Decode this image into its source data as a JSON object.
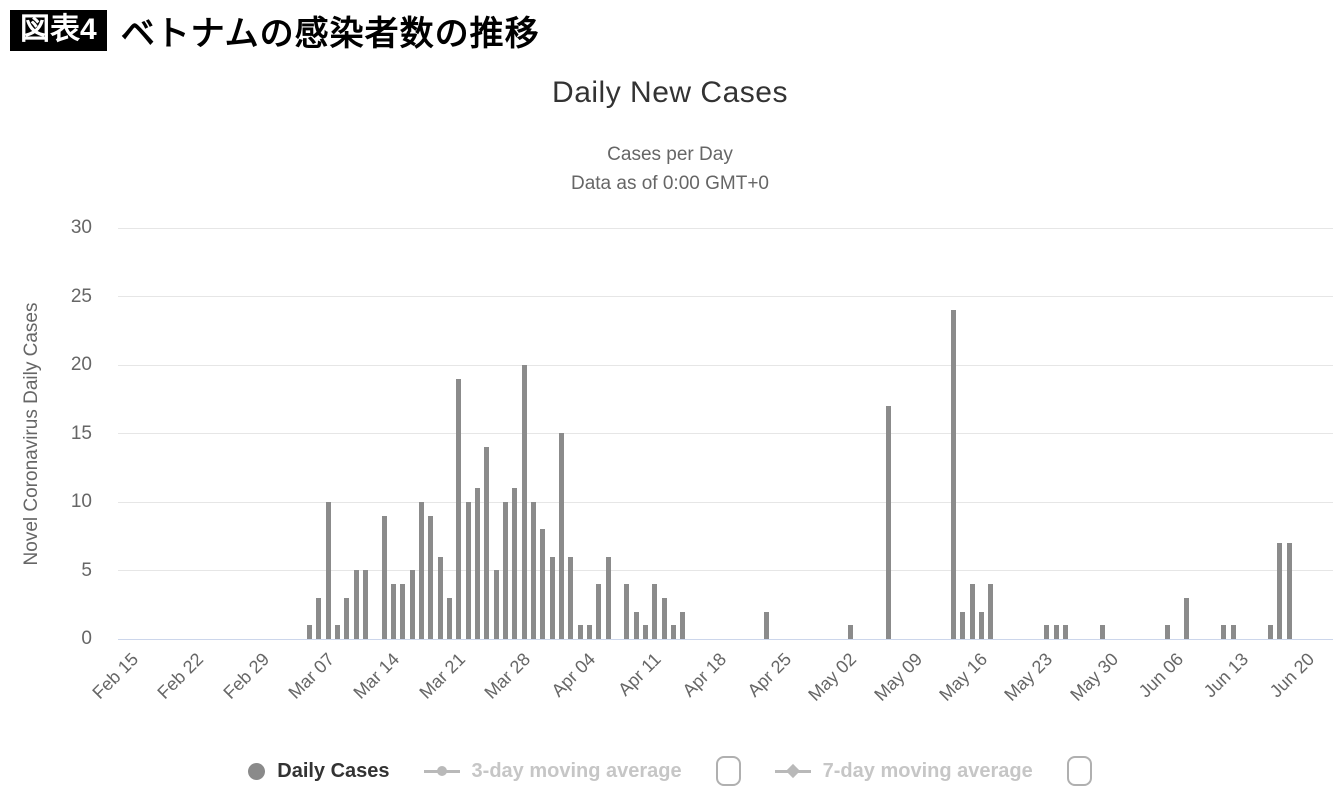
{
  "header": {
    "badge": "図表4",
    "title": "ベトナムの感染者数の推移"
  },
  "titles": {
    "title": "Daily New Cases",
    "subtitle1": "Cases per Day",
    "subtitle2": "Data as of 0:00 GMT+0"
  },
  "legend": {
    "series1": "Daily Cases",
    "series2": "3-day moving average",
    "series3": "7-day moving average"
  },
  "colors": {
    "bar": "#8b8b8b",
    "grid": "#e6e6e6",
    "axis_line": "#ccd6eb",
    "title": "#333333",
    "subtitle": "#666666",
    "tick_label": "#666666",
    "disabled_legend": "#c6c6c6",
    "badge_bg": "#000000",
    "badge_text": "#ffffff"
  },
  "chart_data": {
    "type": "bar",
    "title": "Daily New Cases",
    "subtitle": [
      "Cases per Day",
      "Data as of 0:00 GMT+0"
    ],
    "xlabel": "",
    "ylabel": "Novel Coronavirus Daily Cases",
    "ylim": [
      0,
      30
    ],
    "yticks": [
      0,
      5,
      10,
      15,
      20,
      25,
      30
    ],
    "grid": true,
    "legend_position": "bottom",
    "xtick_every_days": 7,
    "xtick_labels": [
      "Feb 15",
      "Feb 22",
      "Feb 29",
      "Mar 07",
      "Mar 14",
      "Mar 21",
      "Mar 28",
      "Apr 04",
      "Apr 11",
      "Apr 18",
      "Apr 25",
      "May 02",
      "May 09",
      "May 16",
      "May 23",
      "May 30",
      "Jun 06",
      "Jun 13",
      "Jun 20"
    ],
    "categories": [
      "Feb 15",
      "Feb 16",
      "Feb 17",
      "Feb 18",
      "Feb 19",
      "Feb 20",
      "Feb 21",
      "Feb 22",
      "Feb 23",
      "Feb 24",
      "Feb 25",
      "Feb 26",
      "Feb 27",
      "Feb 28",
      "Feb 29",
      "Mar 01",
      "Mar 02",
      "Mar 03",
      "Mar 04",
      "Mar 05",
      "Mar 06",
      "Mar 07",
      "Mar 08",
      "Mar 09",
      "Mar 10",
      "Mar 11",
      "Mar 12",
      "Mar 13",
      "Mar 14",
      "Mar 15",
      "Mar 16",
      "Mar 17",
      "Mar 18",
      "Mar 19",
      "Mar 20",
      "Mar 21",
      "Mar 22",
      "Mar 23",
      "Mar 24",
      "Mar 25",
      "Mar 26",
      "Mar 27",
      "Mar 28",
      "Mar 29",
      "Mar 30",
      "Mar 31",
      "Apr 01",
      "Apr 02",
      "Apr 03",
      "Apr 04",
      "Apr 05",
      "Apr 06",
      "Apr 07",
      "Apr 08",
      "Apr 09",
      "Apr 10",
      "Apr 11",
      "Apr 12",
      "Apr 13",
      "Apr 14",
      "Apr 15",
      "Apr 16",
      "Apr 17",
      "Apr 18",
      "Apr 19",
      "Apr 20",
      "Apr 21",
      "Apr 22",
      "Apr 23",
      "Apr 24",
      "Apr 25",
      "Apr 26",
      "Apr 27",
      "Apr 28",
      "Apr 29",
      "Apr 30",
      "May 01",
      "May 02",
      "May 03",
      "May 04",
      "May 05",
      "May 06",
      "May 07",
      "May 08",
      "May 09",
      "May 10",
      "May 11",
      "May 12",
      "May 13",
      "May 14",
      "May 15",
      "May 16",
      "May 17",
      "May 18",
      "May 19",
      "May 20",
      "May 21",
      "May 22",
      "May 23",
      "May 24",
      "May 25",
      "May 26",
      "May 27",
      "May 28",
      "May 29",
      "May 30",
      "May 31",
      "Jun 01",
      "Jun 02",
      "Jun 03",
      "Jun 04",
      "Jun 05",
      "Jun 06",
      "Jun 07",
      "Jun 08",
      "Jun 09",
      "Jun 10",
      "Jun 11",
      "Jun 12",
      "Jun 13",
      "Jun 14",
      "Jun 15",
      "Jun 16",
      "Jun 17",
      "Jun 18",
      "Jun 19",
      "Jun 20",
      "Jun 21",
      "Jun 22",
      "Jun 23",
      "Jun 24"
    ],
    "series": [
      {
        "name": "Daily Cases",
        "type": "bar",
        "color": "#8b8b8b",
        "visible": true,
        "values": [
          0,
          0,
          0,
          0,
          0,
          0,
          0,
          0,
          0,
          0,
          0,
          0,
          0,
          0,
          0,
          0,
          0,
          0,
          0,
          0,
          1,
          3,
          10,
          1,
          3,
          5,
          5,
          0,
          9,
          4,
          4,
          5,
          10,
          9,
          6,
          3,
          19,
          10,
          11,
          14,
          5,
          10,
          11,
          20,
          10,
          8,
          6,
          15,
          6,
          1,
          1,
          4,
          6,
          0,
          4,
          2,
          1,
          4,
          3,
          1,
          2,
          0,
          0,
          0,
          0,
          0,
          0,
          0,
          0,
          2,
          0,
          0,
          0,
          0,
          0,
          0,
          0,
          0,
          1,
          0,
          0,
          0,
          17,
          0,
          0,
          0,
          0,
          0,
          0,
          24,
          2,
          4,
          2,
          4,
          0,
          0,
          0,
          0,
          0,
          1,
          1,
          1,
          0,
          0,
          0,
          1,
          0,
          0,
          0,
          0,
          0,
          0,
          1,
          0,
          3,
          0,
          0,
          0,
          1,
          1,
          0,
          0,
          0,
          1,
          7,
          7,
          0,
          0,
          0,
          0,
          0
        ]
      },
      {
        "name": "3-day moving average",
        "type": "line",
        "visible": false
      },
      {
        "name": "7-day moving average",
        "type": "line",
        "visible": false
      }
    ]
  }
}
